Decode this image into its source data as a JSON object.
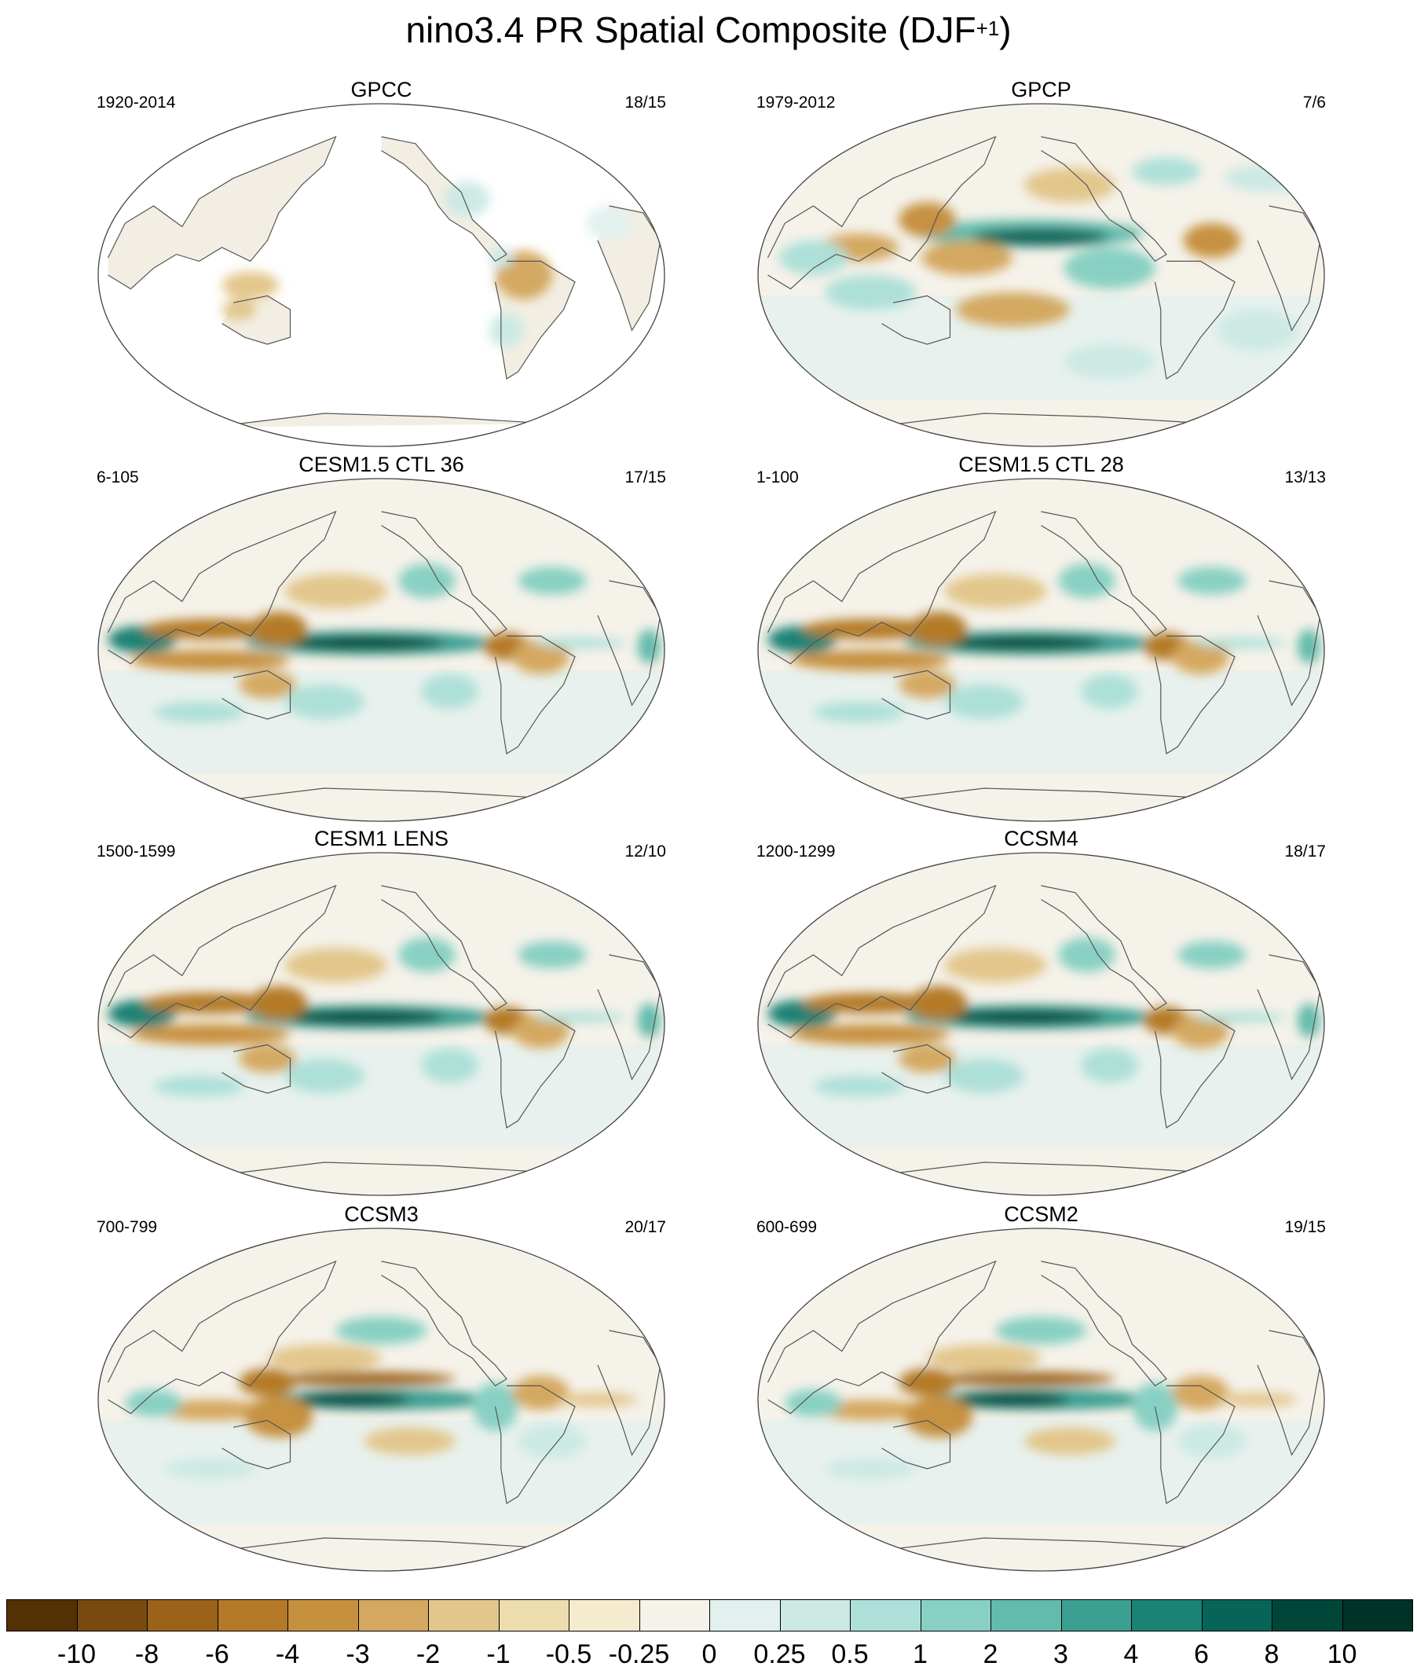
{
  "figure": {
    "title": "nino3.4 PR Spatial Composite (DJF",
    "title_superscript": "+1",
    "title_close": ")"
  },
  "panels": [
    {
      "title": "GPCC",
      "years": "1920-2014",
      "count": "18/15",
      "land_only": true,
      "pattern": "obs-land"
    },
    {
      "title": "GPCP",
      "years": "1979-2012",
      "count": "7/6",
      "land_only": false,
      "pattern": "obs"
    },
    {
      "title": "CESM1.5 CTL 36",
      "years": "6-105",
      "count": "17/15",
      "land_only": false,
      "pattern": "model-strong"
    },
    {
      "title": "CESM1.5 CTL 28",
      "years": "1-100",
      "count": "13/13",
      "land_only": false,
      "pattern": "model-strong"
    },
    {
      "title": "CESM1 LENS",
      "years": "1500-1599",
      "count": "12/10",
      "land_only": false,
      "pattern": "model-strong"
    },
    {
      "title": "CCSM4",
      "years": "1200-1299",
      "count": "18/17",
      "land_only": false,
      "pattern": "model-strong"
    },
    {
      "title": "CCSM3",
      "years": "700-799",
      "count": "20/17",
      "land_only": false,
      "pattern": "model-split"
    },
    {
      "title": "CCSM2",
      "years": "600-699",
      "count": "19/15",
      "land_only": false,
      "pattern": "model-split"
    }
  ],
  "colorbar": {
    "labels": [
      "-10",
      "-8",
      "-6",
      "-4",
      "-3",
      "-2",
      "-1",
      "-0.5",
      "-0.25",
      "0",
      "0.25",
      "0.5",
      "1",
      "2",
      "3",
      "4",
      "6",
      "8",
      "10"
    ],
    "colors": [
      "#543005",
      "#794a10",
      "#9b6319",
      "#b47a27",
      "#c6913f",
      "#d4a861",
      "#e2c68b",
      "#eddcad",
      "#f5ebcf",
      "#f5f2ea",
      "#e3f1ee",
      "#cce9e4",
      "#ade0d8",
      "#88d0c3",
      "#62bbac",
      "#3c9f91",
      "#1c8275",
      "#076459",
      "#004638",
      "#003227"
    ]
  },
  "map_colors": {
    "ocean_neutral": "#f5f2ea",
    "land_neutral": "#f3eee3",
    "coast": "#555555",
    "frame": "#444444"
  }
}
